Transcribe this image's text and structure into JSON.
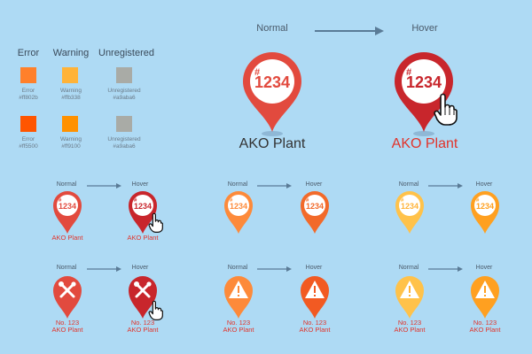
{
  "legend": {
    "headers": {
      "error": "Error",
      "warning": "Warning",
      "unregistered": "Unregistered"
    },
    "row1": [
      {
        "name": "Error",
        "hex": "#ff802b",
        "color": "#ff802b"
      },
      {
        "name": "Warning",
        "hex": "#ffb338",
        "color": "#ffb338"
      },
      {
        "name": "Unregistered",
        "hex": "#a9aba6",
        "color": "#a9aba6"
      }
    ],
    "row2": [
      {
        "name": "Error",
        "hex": "#ff5500",
        "color": "#ff5500"
      },
      {
        "name": "Warning",
        "hex": "#ff9100",
        "color": "#ff9100"
      },
      {
        "name": "Unregistered",
        "hex": "#a9aba6",
        "color": "#a9aba6"
      }
    ]
  },
  "states": {
    "normal": "Normal",
    "hover": "Hover"
  },
  "pin": {
    "hash": "#",
    "number": "1234",
    "plant_label": "AKO Plant",
    "no_line": "No. 123",
    "icons": [
      "wrench-screwdriver-icon",
      "warning-icon",
      "hand-cursor-icon"
    ]
  },
  "colors": {
    "red_normal": "#e24a3e",
    "red_hover": "#c8262c",
    "orange_normal": "#fd8a3a",
    "orange_hover": "#f25a22",
    "yellow_normal": "#ffc24a",
    "yellow_hover": "#ffa020",
    "text_red": "#e2332a",
    "text_dark": "#333333",
    "arrow": "#5a7b96"
  }
}
